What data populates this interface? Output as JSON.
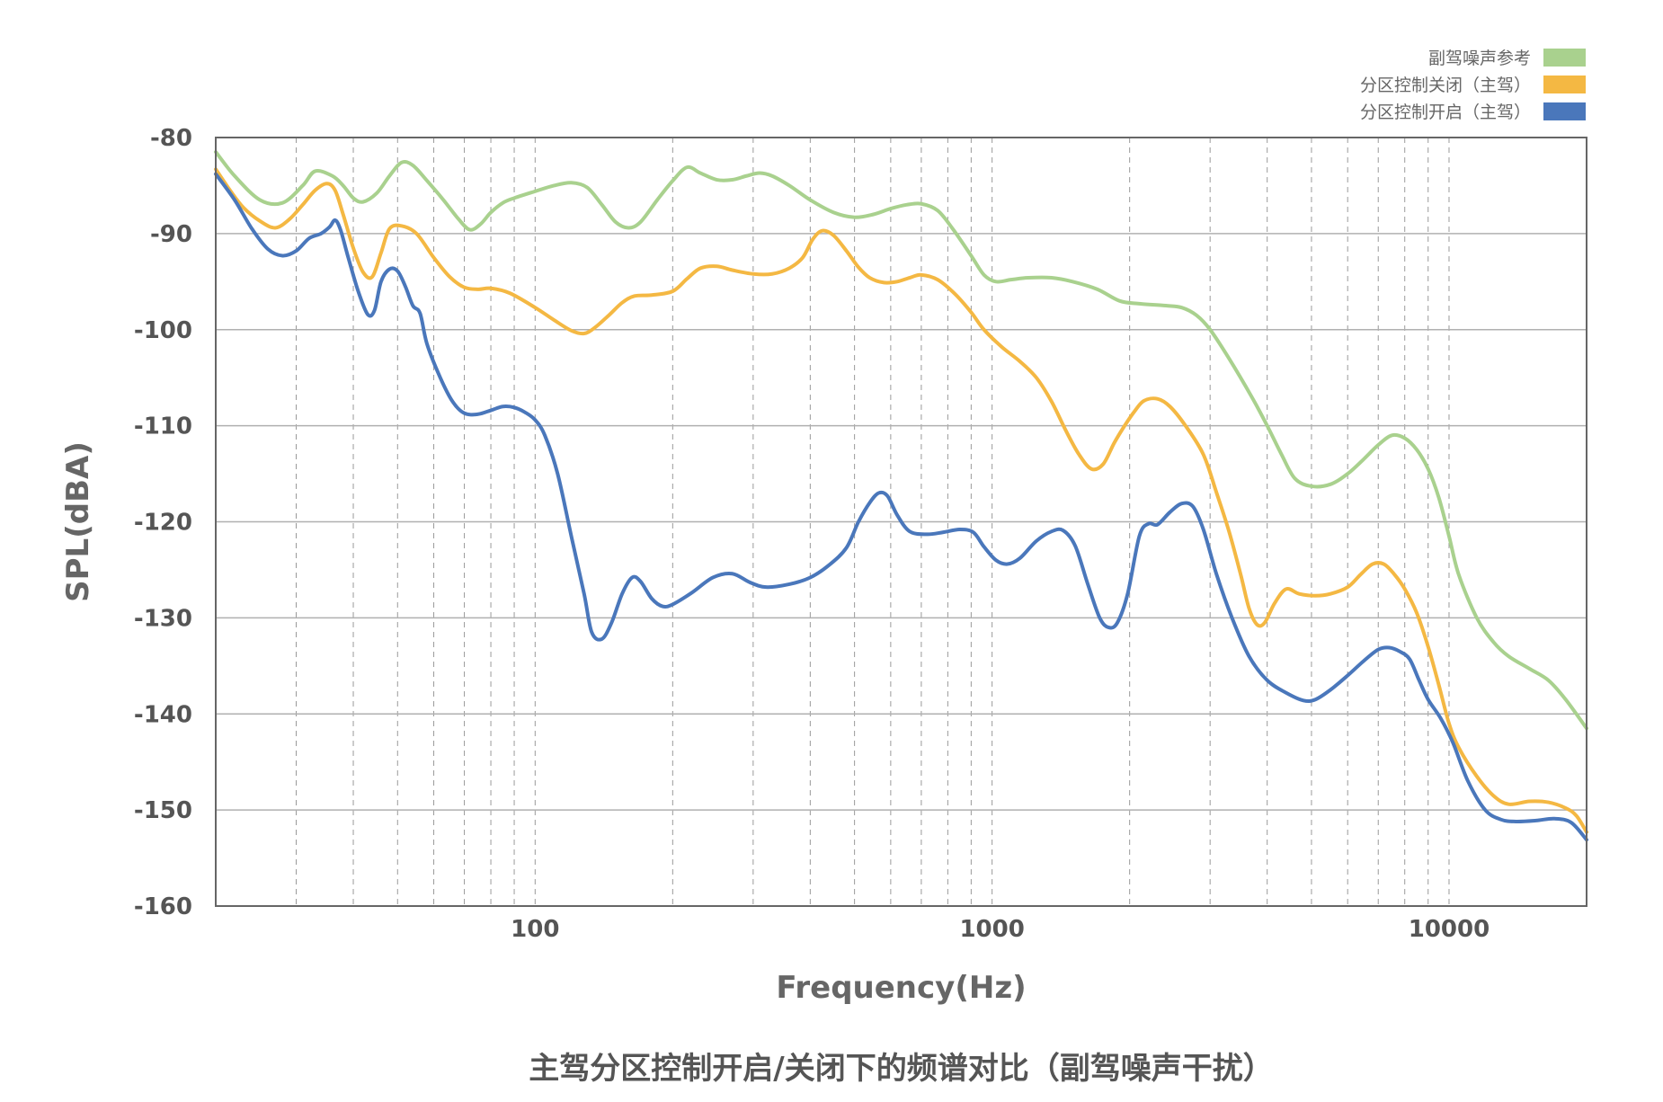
{
  "chart_data": {
    "type": "line",
    "title": "主驾分区控制开启/关闭下的频谱对比（副驾噪声干扰）",
    "xlabel": "Frequency(Hz)",
    "ylabel": "SPL(dBA)",
    "xscale": "log",
    "xlim": [
      20,
      20000
    ],
    "ylim": [
      -160,
      -80
    ],
    "xticks": [
      100,
      1000,
      10000
    ],
    "xtick_labels": [
      "100",
      "1000",
      "10000"
    ],
    "yticks": [
      -80,
      -90,
      -100,
      -110,
      -120,
      -130,
      -140,
      -150,
      -160
    ],
    "ytick_labels": [
      "-80",
      "-90",
      "-100",
      "-110",
      "-120",
      "-130",
      "-140",
      "-150",
      "-160"
    ],
    "grid": "horizontal major solid, vertical log minor dashed",
    "legend_position": "top-right",
    "series": [
      {
        "name": "副驾噪声参考",
        "color": "#a9d18e",
        "points": [
          [
            20,
            -81.5
          ],
          [
            22,
            -84
          ],
          [
            25,
            -86.5
          ],
          [
            28,
            -86.8
          ],
          [
            31,
            -85
          ],
          [
            33,
            -83.5
          ],
          [
            36,
            -84
          ],
          [
            38,
            -85
          ],
          [
            40,
            -86.3
          ],
          [
            42,
            -86.7
          ],
          [
            45,
            -85.8
          ],
          [
            48,
            -84
          ],
          [
            51,
            -82.6
          ],
          [
            54,
            -82.9
          ],
          [
            58,
            -84.5
          ],
          [
            63,
            -86.5
          ],
          [
            68,
            -88.5
          ],
          [
            72,
            -89.6
          ],
          [
            76,
            -89
          ],
          [
            80,
            -87.8
          ],
          [
            85,
            -86.8
          ],
          [
            90,
            -86.3
          ],
          [
            100,
            -85.6
          ],
          [
            110,
            -85
          ],
          [
            120,
            -84.7
          ],
          [
            130,
            -85.2
          ],
          [
            140,
            -87
          ],
          [
            150,
            -88.8
          ],
          [
            160,
            -89.4
          ],
          [
            170,
            -88.8
          ],
          [
            185,
            -86.5
          ],
          [
            200,
            -84.5
          ],
          [
            215,
            -83.1
          ],
          [
            230,
            -83.7
          ],
          [
            250,
            -84.4
          ],
          [
            270,
            -84.4
          ],
          [
            290,
            -84
          ],
          [
            310,
            -83.7
          ],
          [
            330,
            -84
          ],
          [
            360,
            -85
          ],
          [
            400,
            -86.5
          ],
          [
            450,
            -87.8
          ],
          [
            500,
            -88.3
          ],
          [
            550,
            -88
          ],
          [
            600,
            -87.4
          ],
          [
            650,
            -87
          ],
          [
            700,
            -86.9
          ],
          [
            760,
            -87.6
          ],
          [
            820,
            -89.5
          ],
          [
            900,
            -92.3
          ],
          [
            960,
            -94.3
          ],
          [
            1020,
            -95
          ],
          [
            1100,
            -94.8
          ],
          [
            1200,
            -94.6
          ],
          [
            1350,
            -94.6
          ],
          [
            1500,
            -95
          ],
          [
            1700,
            -95.8
          ],
          [
            1900,
            -97
          ],
          [
            2100,
            -97.3
          ],
          [
            2400,
            -97.5
          ],
          [
            2600,
            -97.7
          ],
          [
            2800,
            -98.5
          ],
          [
            3000,
            -100
          ],
          [
            3300,
            -103
          ],
          [
            3700,
            -107
          ],
          [
            4000,
            -110
          ],
          [
            4300,
            -113
          ],
          [
            4600,
            -115.5
          ],
          [
            5000,
            -116.3
          ],
          [
            5500,
            -116.1
          ],
          [
            6000,
            -115
          ],
          [
            6500,
            -113.5
          ],
          [
            7000,
            -112
          ],
          [
            7500,
            -111
          ],
          [
            8000,
            -111.3
          ],
          [
            8500,
            -112.5
          ],
          [
            9000,
            -114.5
          ],
          [
            9500,
            -117.5
          ],
          [
            10000,
            -121.5
          ],
          [
            10500,
            -125.5
          ],
          [
            11500,
            -130
          ],
          [
            12500,
            -132.5
          ],
          [
            13500,
            -134
          ],
          [
            15000,
            -135.3
          ],
          [
            16500,
            -136.5
          ],
          [
            18000,
            -138.5
          ],
          [
            20000,
            -141.5
          ]
        ]
      },
      {
        "name": "分区控制关闭（主驾）",
        "color": "#f4b843",
        "points": [
          [
            20,
            -83.3
          ],
          [
            21.5,
            -85.5
          ],
          [
            23,
            -87.3
          ],
          [
            25,
            -88.7
          ],
          [
            27,
            -89.4
          ],
          [
            29,
            -88.5
          ],
          [
            31,
            -87
          ],
          [
            33,
            -85.5
          ],
          [
            35,
            -84.8
          ],
          [
            36.5,
            -85.5
          ],
          [
            38,
            -88
          ],
          [
            40,
            -91.5
          ],
          [
            42,
            -94
          ],
          [
            44,
            -94.5
          ],
          [
            46,
            -92
          ],
          [
            48,
            -89.5
          ],
          [
            51,
            -89.2
          ],
          [
            55,
            -90
          ],
          [
            60,
            -92.5
          ],
          [
            65,
            -94.5
          ],
          [
            70,
            -95.6
          ],
          [
            75,
            -95.8
          ],
          [
            80,
            -95.7
          ],
          [
            88,
            -96.2
          ],
          [
            100,
            -97.7
          ],
          [
            110,
            -99
          ],
          [
            120,
            -100.1
          ],
          [
            128,
            -100.4
          ],
          [
            135,
            -99.8
          ],
          [
            145,
            -98.5
          ],
          [
            155,
            -97.2
          ],
          [
            165,
            -96.5
          ],
          [
            180,
            -96.4
          ],
          [
            200,
            -96
          ],
          [
            215,
            -94.7
          ],
          [
            230,
            -93.6
          ],
          [
            250,
            -93.4
          ],
          [
            270,
            -93.8
          ],
          [
            300,
            -94.2
          ],
          [
            330,
            -94.2
          ],
          [
            360,
            -93.6
          ],
          [
            385,
            -92.5
          ],
          [
            405,
            -90.6
          ],
          [
            425,
            -89.7
          ],
          [
            450,
            -90.2
          ],
          [
            480,
            -91.8
          ],
          [
            510,
            -93.5
          ],
          [
            540,
            -94.6
          ],
          [
            580,
            -95.1
          ],
          [
            620,
            -95
          ],
          [
            660,
            -94.6
          ],
          [
            700,
            -94.3
          ],
          [
            760,
            -94.8
          ],
          [
            830,
            -96.3
          ],
          [
            900,
            -98.2
          ],
          [
            960,
            -100
          ],
          [
            1050,
            -101.8
          ],
          [
            1150,
            -103.3
          ],
          [
            1250,
            -105
          ],
          [
            1350,
            -107.5
          ],
          [
            1450,
            -110.5
          ],
          [
            1550,
            -113
          ],
          [
            1650,
            -114.5
          ],
          [
            1750,
            -114
          ],
          [
            1850,
            -111.8
          ],
          [
            1950,
            -110
          ],
          [
            2050,
            -108.5
          ],
          [
            2150,
            -107.4
          ],
          [
            2300,
            -107.2
          ],
          [
            2450,
            -108
          ],
          [
            2650,
            -110
          ],
          [
            2900,
            -113
          ],
          [
            3100,
            -117
          ],
          [
            3300,
            -121
          ],
          [
            3500,
            -125.5
          ],
          [
            3650,
            -129
          ],
          [
            3800,
            -130.7
          ],
          [
            3950,
            -130.5
          ],
          [
            4150,
            -128.5
          ],
          [
            4400,
            -127
          ],
          [
            4700,
            -127.5
          ],
          [
            5100,
            -127.7
          ],
          [
            5500,
            -127.5
          ],
          [
            6000,
            -126.8
          ],
          [
            6400,
            -125.5
          ],
          [
            6800,
            -124.4
          ],
          [
            7200,
            -124.4
          ],
          [
            7600,
            -125.5
          ],
          [
            8000,
            -127
          ],
          [
            8500,
            -129.5
          ],
          [
            9000,
            -133
          ],
          [
            9500,
            -137
          ],
          [
            10000,
            -141
          ],
          [
            10500,
            -143.5
          ],
          [
            11500,
            -146.5
          ],
          [
            12500,
            -148.5
          ],
          [
            13500,
            -149.4
          ],
          [
            15000,
            -149.1
          ],
          [
            16500,
            -149.2
          ],
          [
            18000,
            -149.8
          ],
          [
            19000,
            -150.6
          ],
          [
            20000,
            -152.3
          ]
        ]
      },
      {
        "name": "分区控制开启（主驾）",
        "color": "#4a77bb",
        "points": [
          [
            20,
            -83.8
          ],
          [
            22,
            -86.5
          ],
          [
            24,
            -89.5
          ],
          [
            26,
            -91.6
          ],
          [
            28,
            -92.3
          ],
          [
            30,
            -91.8
          ],
          [
            32,
            -90.5
          ],
          [
            34,
            -90
          ],
          [
            35.5,
            -89.3
          ],
          [
            36.5,
            -88.6
          ],
          [
            37.5,
            -89.6
          ],
          [
            39,
            -92.5
          ],
          [
            41,
            -96
          ],
          [
            43,
            -98.4
          ],
          [
            44.5,
            -98
          ],
          [
            46,
            -95
          ],
          [
            48,
            -93.7
          ],
          [
            50,
            -93.9
          ],
          [
            52,
            -95.5
          ],
          [
            54,
            -97.5
          ],
          [
            56,
            -98.3
          ],
          [
            58,
            -101.5
          ],
          [
            62,
            -105
          ],
          [
            66,
            -107.5
          ],
          [
            70,
            -108.7
          ],
          [
            75,
            -108.8
          ],
          [
            80,
            -108.4
          ],
          [
            85,
            -108
          ],
          [
            90,
            -108.1
          ],
          [
            95,
            -108.6
          ],
          [
            100,
            -109.4
          ],
          [
            105,
            -111
          ],
          [
            112,
            -115
          ],
          [
            120,
            -121.5
          ],
          [
            128,
            -127.5
          ],
          [
            133,
            -131.5
          ],
          [
            140,
            -132.2
          ],
          [
            147,
            -130.5
          ],
          [
            155,
            -127.5
          ],
          [
            163,
            -125.8
          ],
          [
            170,
            -126.2
          ],
          [
            180,
            -128
          ],
          [
            190,
            -128.8
          ],
          [
            200,
            -128.6
          ],
          [
            220,
            -127.4
          ],
          [
            245,
            -125.8
          ],
          [
            270,
            -125.4
          ],
          [
            295,
            -126.3
          ],
          [
            320,
            -126.8
          ],
          [
            360,
            -126.5
          ],
          [
            400,
            -125.8
          ],
          [
            440,
            -124.5
          ],
          [
            480,
            -122.7
          ],
          [
            510,
            -120
          ],
          [
            540,
            -118
          ],
          [
            565,
            -117
          ],
          [
            590,
            -117.3
          ],
          [
            620,
            -119.3
          ],
          [
            660,
            -121
          ],
          [
            720,
            -121.3
          ],
          [
            780,
            -121.1
          ],
          [
            850,
            -120.8
          ],
          [
            910,
            -121.1
          ],
          [
            960,
            -122.6
          ],
          [
            1020,
            -124
          ],
          [
            1080,
            -124.4
          ],
          [
            1150,
            -123.8
          ],
          [
            1250,
            -122
          ],
          [
            1350,
            -121
          ],
          [
            1430,
            -120.9
          ],
          [
            1520,
            -122.5
          ],
          [
            1620,
            -126.5
          ],
          [
            1720,
            -130
          ],
          [
            1800,
            -131
          ],
          [
            1880,
            -130.5
          ],
          [
            1980,
            -127.5
          ],
          [
            2100,
            -121.5
          ],
          [
            2200,
            -120.2
          ],
          [
            2300,
            -120.3
          ],
          [
            2450,
            -119
          ],
          [
            2600,
            -118.1
          ],
          [
            2750,
            -118.4
          ],
          [
            2900,
            -120.8
          ],
          [
            3100,
            -125.5
          ],
          [
            3350,
            -130
          ],
          [
            3650,
            -134
          ],
          [
            4000,
            -136.5
          ],
          [
            4400,
            -137.8
          ],
          [
            4800,
            -138.6
          ],
          [
            5100,
            -138.5
          ],
          [
            5500,
            -137.5
          ],
          [
            6000,
            -136
          ],
          [
            6500,
            -134.5
          ],
          [
            7000,
            -133.3
          ],
          [
            7400,
            -133.1
          ],
          [
            7800,
            -133.5
          ],
          [
            8200,
            -134.3
          ],
          [
            8600,
            -136.5
          ],
          [
            9000,
            -138.5
          ],
          [
            9600,
            -140.5
          ],
          [
            10200,
            -143
          ],
          [
            11000,
            -147
          ],
          [
            12000,
            -150
          ],
          [
            13000,
            -151
          ],
          [
            14000,
            -151.2
          ],
          [
            15500,
            -151.1
          ],
          [
            17000,
            -150.9
          ],
          [
            18500,
            -151.3
          ],
          [
            20000,
            -153.1
          ]
        ]
      }
    ]
  }
}
